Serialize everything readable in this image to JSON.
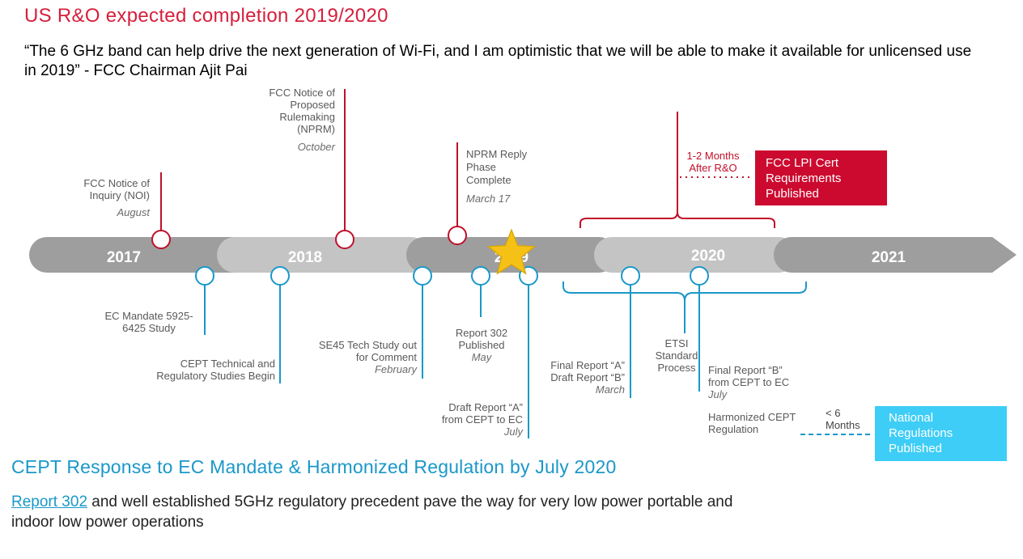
{
  "title": "US R&O expected completion 2019/2020",
  "quote": "“The 6 GHz band can help drive the next generation of Wi-Fi, and I am optimistic that we will be able to make it available for unlicensed use in 2019” - FCC Chairman Ajit Pai",
  "timeline": {
    "years": [
      "2017",
      "2018",
      "2019",
      "2020",
      "2021"
    ],
    "us_events": {
      "noi": {
        "label": "FCC Notice of Inquiry (NOI)",
        "date": "August"
      },
      "nprm": {
        "label": "FCC Notice of Proposed Rulemaking (NPRM)",
        "date": "October"
      },
      "reply": {
        "label": "NPRM Reply Phase Complete",
        "date": "March 17"
      },
      "ro_window": "1-2 Months After R&O",
      "lpi_box": "FCC LPI Cert Requirements Published"
    },
    "eu_events": {
      "mandate": {
        "label": "EC Mandate 5925-6425 Study"
      },
      "cept_begin": {
        "label": "CEPT Technical and Regulatory Studies Begin"
      },
      "se45": {
        "label": "SE45 Tech Study out for Comment",
        "date": "February"
      },
      "r302": {
        "label": "Report 302 Published",
        "date": "May"
      },
      "draft_a": {
        "label": "Draft Report “A” from CEPT to EC",
        "date": "July"
      },
      "final_ab": {
        "label": "Final Report “A” Draft Report “B”",
        "date": "March"
      },
      "etsi": {
        "label": "ETSI Standard Process"
      },
      "final_b": {
        "label": "Final Report “B” from CEPT to EC",
        "date": "July"
      },
      "harmonized": {
        "label": "Harmonized CEPT Regulation"
      },
      "lt6": "< 6 Months",
      "national_box": "National Regulations Published"
    }
  },
  "cept_title": "CEPT Response to EC Mandate & Harmonized Regulation by July 2020",
  "bottom": {
    "link": "Report 302",
    "text": " and well established 5GHz regulatory precedent pave the way for very low power portable and indoor low power operations"
  },
  "colors": {
    "red": "#cc0a2f",
    "blue": "#1a98c9",
    "dark_band": "#9e9e9e",
    "light_band": "#c4c4c4",
    "star": "#f5c116"
  }
}
